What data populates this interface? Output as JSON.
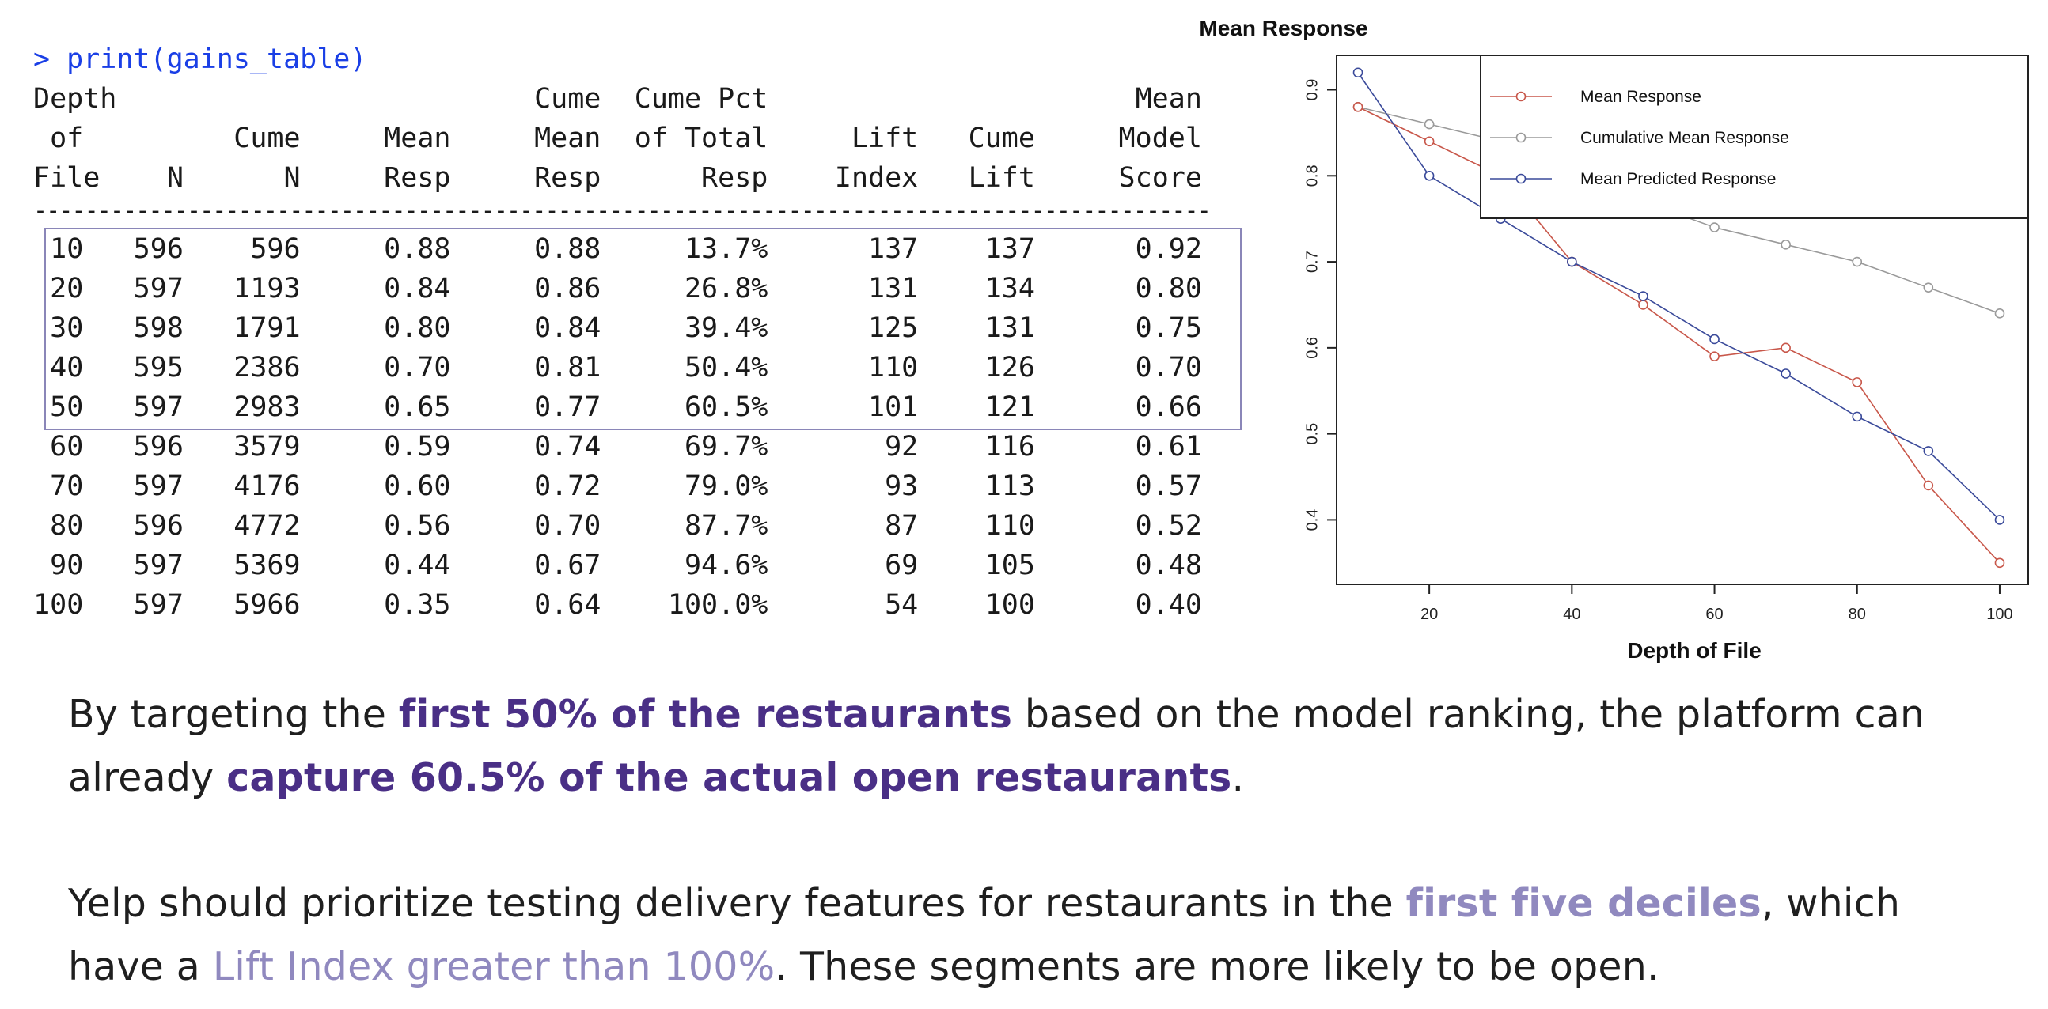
{
  "console": {
    "command": "> print(gains_table)",
    "header_rows": [
      [
        "Depth",
        "",
        "",
        "",
        "Cume",
        "Cume Pct",
        "",
        "",
        "Mean"
      ],
      [
        " of",
        "",
        "Cume",
        "Mean",
        "Mean",
        "of Total",
        "Lift",
        "Cume",
        "Model"
      ],
      [
        "File",
        "N",
        "N",
        "Resp",
        "Resp",
        "Resp",
        "Index",
        "Lift",
        "Score"
      ]
    ],
    "separator": "--------------------------------------------------------------------------------------------",
    "rows": [
      [
        "10",
        "596",
        "596",
        "0.88",
        "0.88",
        "13.7%",
        "137",
        "137",
        "0.92"
      ],
      [
        "20",
        "597",
        "1193",
        "0.84",
        "0.86",
        "26.8%",
        "131",
        "134",
        "0.80"
      ],
      [
        "30",
        "598",
        "1791",
        "0.80",
        "0.84",
        "39.4%",
        "125",
        "131",
        "0.75"
      ],
      [
        "40",
        "595",
        "2386",
        "0.70",
        "0.81",
        "50.4%",
        "110",
        "126",
        "0.70"
      ],
      [
        "50",
        "597",
        "2983",
        "0.65",
        "0.77",
        "60.5%",
        "101",
        "121",
        "0.66"
      ],
      [
        "60",
        "596",
        "3579",
        "0.59",
        "0.74",
        "69.7%",
        "92",
        "116",
        "0.61"
      ],
      [
        "70",
        "597",
        "4176",
        "0.60",
        "0.72",
        "79.0%",
        "93",
        "113",
        "0.57"
      ],
      [
        "80",
        "596",
        "4772",
        "0.56",
        "0.70",
        "87.7%",
        "87",
        "110",
        "0.52"
      ],
      [
        "90",
        "597",
        "5369",
        "0.44",
        "0.67",
        "94.6%",
        "69",
        "105",
        "0.48"
      ],
      [
        "100",
        "597",
        "5966",
        "0.35",
        "0.64",
        "100.0%",
        "54",
        "100",
        "0.40"
      ]
    ]
  },
  "chart_data": {
    "type": "line",
    "title": "Mean Response",
    "xlabel": "Depth of File",
    "ylabel": "",
    "x": [
      10,
      20,
      30,
      40,
      50,
      60,
      70,
      80,
      90,
      100
    ],
    "xlim": [
      7,
      104
    ],
    "ylim": [
      0.325,
      0.94
    ],
    "x_ticks": [
      20,
      40,
      60,
      80,
      100
    ],
    "y_ticks": [
      0.4,
      0.5,
      0.6,
      0.7,
      0.8,
      0.9
    ],
    "x_tick_labels": [
      "20",
      "40",
      "60",
      "80",
      "100"
    ],
    "y_tick_labels": [
      "0.4",
      "0.5",
      "0.6",
      "0.7",
      "0.8",
      "0.9"
    ],
    "legend_position": "top-right",
    "series": [
      {
        "name": "Mean Response",
        "color": "#c8574a",
        "values": [
          0.88,
          0.84,
          0.8,
          0.7,
          0.65,
          0.59,
          0.6,
          0.56,
          0.44,
          0.35
        ]
      },
      {
        "name": "Cumulative Mean Response",
        "color": "#9a9a9a",
        "values": [
          0.88,
          0.86,
          0.84,
          0.81,
          0.77,
          0.74,
          0.72,
          0.7,
          0.67,
          0.64
        ]
      },
      {
        "name": "Mean Predicted Response",
        "color": "#3a4a9a",
        "values": [
          0.92,
          0.8,
          0.75,
          0.7,
          0.66,
          0.61,
          0.57,
          0.52,
          0.48,
          0.4
        ]
      }
    ]
  },
  "text": {
    "p1_a": "By targeting the ",
    "p1_b": "first 50% of the restaurants",
    "p1_c": " based on the model ranking, the platform can already ",
    "p1_d": "capture 60.5% of the actual open restaurants",
    "p1_e": ".",
    "p2_a": "Yelp should prioritize testing delivery features for restaurants in the ",
    "p2_b": "first five deciles",
    "p2_c": ", which have a ",
    "p2_d": "Lift Index greater than 100%",
    "p2_e": ". These segments are more likely to be open."
  }
}
